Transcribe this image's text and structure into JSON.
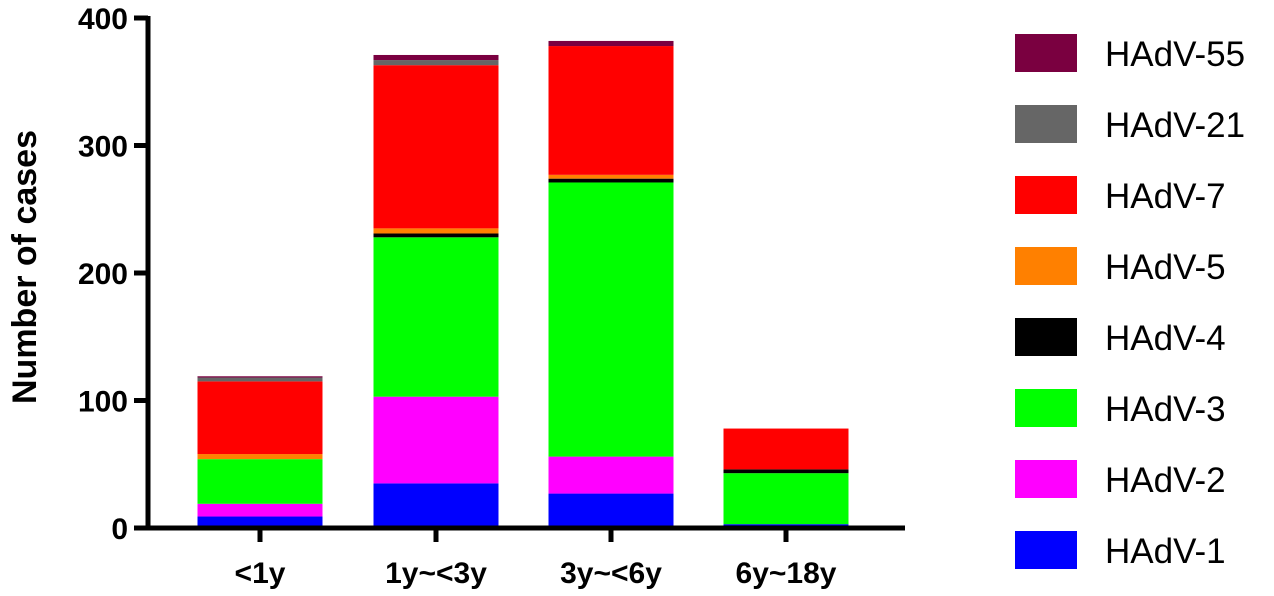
{
  "chart_data": {
    "type": "bar",
    "stacked": true,
    "ylabel": "Number of cases",
    "xlabel": "",
    "ylim": [
      0,
      400
    ],
    "yticks": [
      0,
      100,
      200,
      300,
      400
    ],
    "categories": [
      "<1y",
      "1y~<3y",
      "3y~<6y",
      "6y~18y"
    ],
    "series": [
      {
        "name": "HAdV-1",
        "color": "#0000ff",
        "values": [
          9,
          35,
          27,
          3
        ]
      },
      {
        "name": "HAdV-2",
        "color": "#ff00ff",
        "values": [
          10,
          68,
          29,
          0
        ]
      },
      {
        "name": "HAdV-3",
        "color": "#00ff00",
        "values": [
          35,
          125,
          215,
          40
        ]
      },
      {
        "name": "HAdV-4",
        "color": "#000000",
        "values": [
          0,
          3,
          3,
          3
        ]
      },
      {
        "name": "HAdV-5",
        "color": "#ff8000",
        "values": [
          4,
          4,
          3,
          0
        ]
      },
      {
        "name": "HAdV-7",
        "color": "#ff0000",
        "values": [
          57,
          128,
          101,
          32
        ]
      },
      {
        "name": "HAdV-21",
        "color": "#666666",
        "values": [
          3,
          4,
          0,
          0
        ]
      },
      {
        "name": "HAdV-55",
        "color": "#7a0040",
        "values": [
          1,
          4,
          4,
          0
        ]
      }
    ],
    "legend": {
      "position": "right",
      "order": [
        "HAdV-55",
        "HAdV-21",
        "HAdV-7",
        "HAdV-5",
        "HAdV-4",
        "HAdV-3",
        "HAdV-2",
        "HAdV-1"
      ]
    }
  }
}
